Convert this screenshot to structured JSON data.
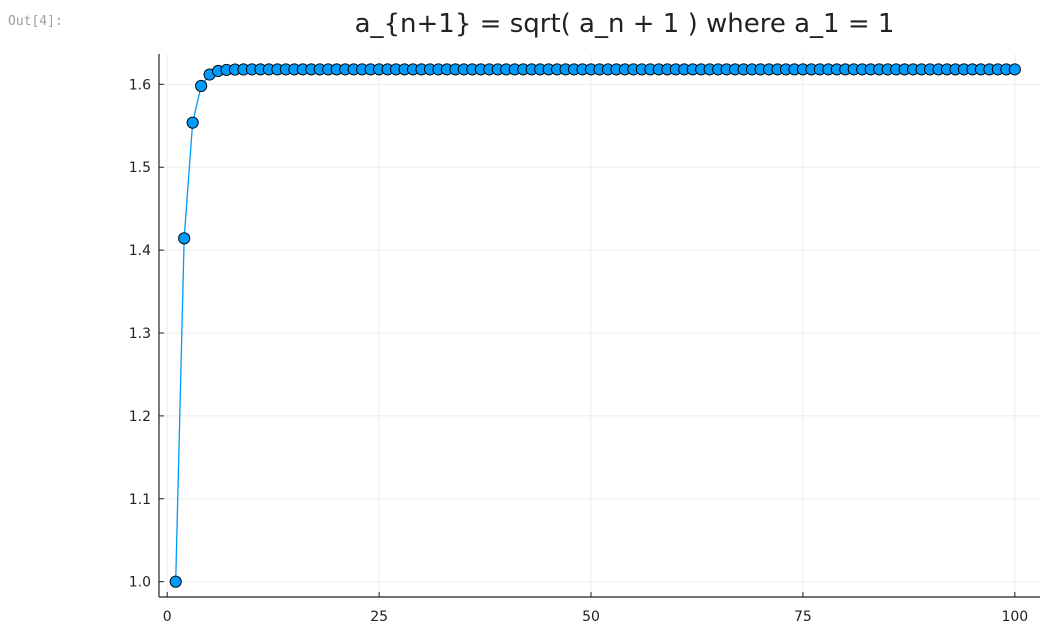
{
  "cell": {
    "out_prompt": "Out[4]:"
  },
  "chart_data": {
    "type": "scatter",
    "title": "a_{n+1} = sqrt( a_n + 1 ) where a_1 = 1",
    "xlabel": "",
    "ylabel": "",
    "xlim": [
      -0.97,
      102.97
    ],
    "ylim": [
      0.9815,
      1.6366
    ],
    "xticks": [
      0,
      25,
      50,
      75,
      100
    ],
    "xtick_labels": [
      "0",
      "25",
      "50",
      "75",
      "100"
    ],
    "yticks": [
      1.0,
      1.1,
      1.2,
      1.3,
      1.4,
      1.5,
      1.6
    ],
    "ytick_labels": [
      "1.0",
      "1.1",
      "1.2",
      "1.3",
      "1.4",
      "1.5",
      "1.6"
    ],
    "grid": true,
    "legend": "none",
    "series": [
      {
        "recurrence": "a_{n+1} = sqrt(a_n + 1), a_1 = 1",
        "n_start": 1,
        "n_end": 100,
        "marker": "circle",
        "line": true,
        "color": "#009AFA",
        "marker_edge_color": "#000000"
      }
    ]
  },
  "colors": {
    "series": "#009AFA",
    "grid": "#ececec",
    "axis": "#222222",
    "text": "#222222"
  }
}
